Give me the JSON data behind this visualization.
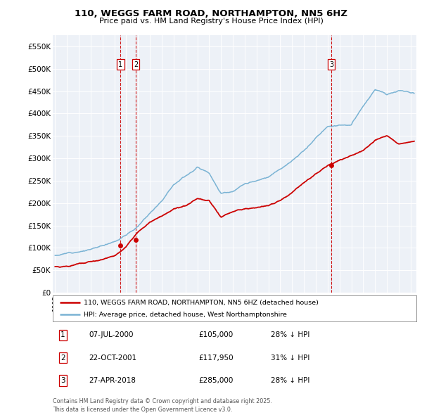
{
  "title": "110, WEGGS FARM ROAD, NORTHAMPTON, NN5 6HZ",
  "subtitle": "Price paid vs. HM Land Registry's House Price Index (HPI)",
  "ylabel_ticks": [
    "£0",
    "£50K",
    "£100K",
    "£150K",
    "£200K",
    "£250K",
    "£300K",
    "£350K",
    "£400K",
    "£450K",
    "£500K",
    "£550K"
  ],
  "ytick_values": [
    0,
    50000,
    100000,
    150000,
    200000,
    250000,
    300000,
    350000,
    400000,
    450000,
    500000,
    550000
  ],
  "ylim": [
    0,
    575000
  ],
  "xlim_start": 1994.8,
  "xlim_end": 2025.5,
  "hpi_color": "#7ab3d4",
  "price_color": "#cc0000",
  "transactions": [
    {
      "id": 1,
      "date_str": "07-JUL-2000",
      "year": 2000.52,
      "price": 105000,
      "pct": "28%",
      "dir": "↓"
    },
    {
      "id": 2,
      "date_str": "22-OCT-2001",
      "year": 2001.81,
      "price": 117950,
      "pct": "31%",
      "dir": "↓"
    },
    {
      "id": 3,
      "date_str": "27-APR-2018",
      "year": 2018.32,
      "price": 285000,
      "pct": "28%",
      "dir": "↓"
    }
  ],
  "hpi_keypoints_x": [
    1995,
    1996,
    1997,
    1998,
    1999,
    2000,
    2001,
    2002,
    2003,
    2004,
    2005,
    2006,
    2007,
    2008,
    2009,
    2010,
    2011,
    2012,
    2013,
    2014,
    2015,
    2016,
    2017,
    2018,
    2019,
    2020,
    2021,
    2022,
    2023,
    2024,
    2025
  ],
  "hpi_keypoints_y": [
    83000,
    88000,
    95000,
    100000,
    108000,
    120000,
    135000,
    155000,
    185000,
    215000,
    255000,
    275000,
    295000,
    285000,
    240000,
    245000,
    260000,
    265000,
    270000,
    290000,
    310000,
    330000,
    360000,
    385000,
    390000,
    390000,
    430000,
    465000,
    455000,
    465000,
    460000
  ],
  "price_keypoints_x": [
    1995,
    1996,
    1997,
    1998,
    1999,
    2000,
    2001,
    2002,
    2003,
    2004,
    2005,
    2006,
    2007,
    2008,
    2009,
    2010,
    2011,
    2012,
    2013,
    2014,
    2015,
    2016,
    2017,
    2018,
    2019,
    2020,
    2021,
    2022,
    2023,
    2024,
    2025
  ],
  "price_keypoints_y": [
    58000,
    60000,
    65000,
    68000,
    72000,
    80000,
    100000,
    130000,
    155000,
    168000,
    180000,
    185000,
    200000,
    195000,
    158000,
    168000,
    175000,
    178000,
    183000,
    195000,
    215000,
    235000,
    258000,
    275000,
    285000,
    295000,
    305000,
    330000,
    340000,
    325000,
    330000
  ],
  "legend_line1": "110, WEGGS FARM ROAD, NORTHAMPTON, NN5 6HZ (detached house)",
  "legend_line2": "HPI: Average price, detached house, West Northamptonshire",
  "footnote": "Contains HM Land Registry data © Crown copyright and database right 2025.\nThis data is licensed under the Open Government Licence v3.0.",
  "background_color": "#ffffff",
  "plot_bg_color": "#edf1f7",
  "grid_color": "#ffffff"
}
